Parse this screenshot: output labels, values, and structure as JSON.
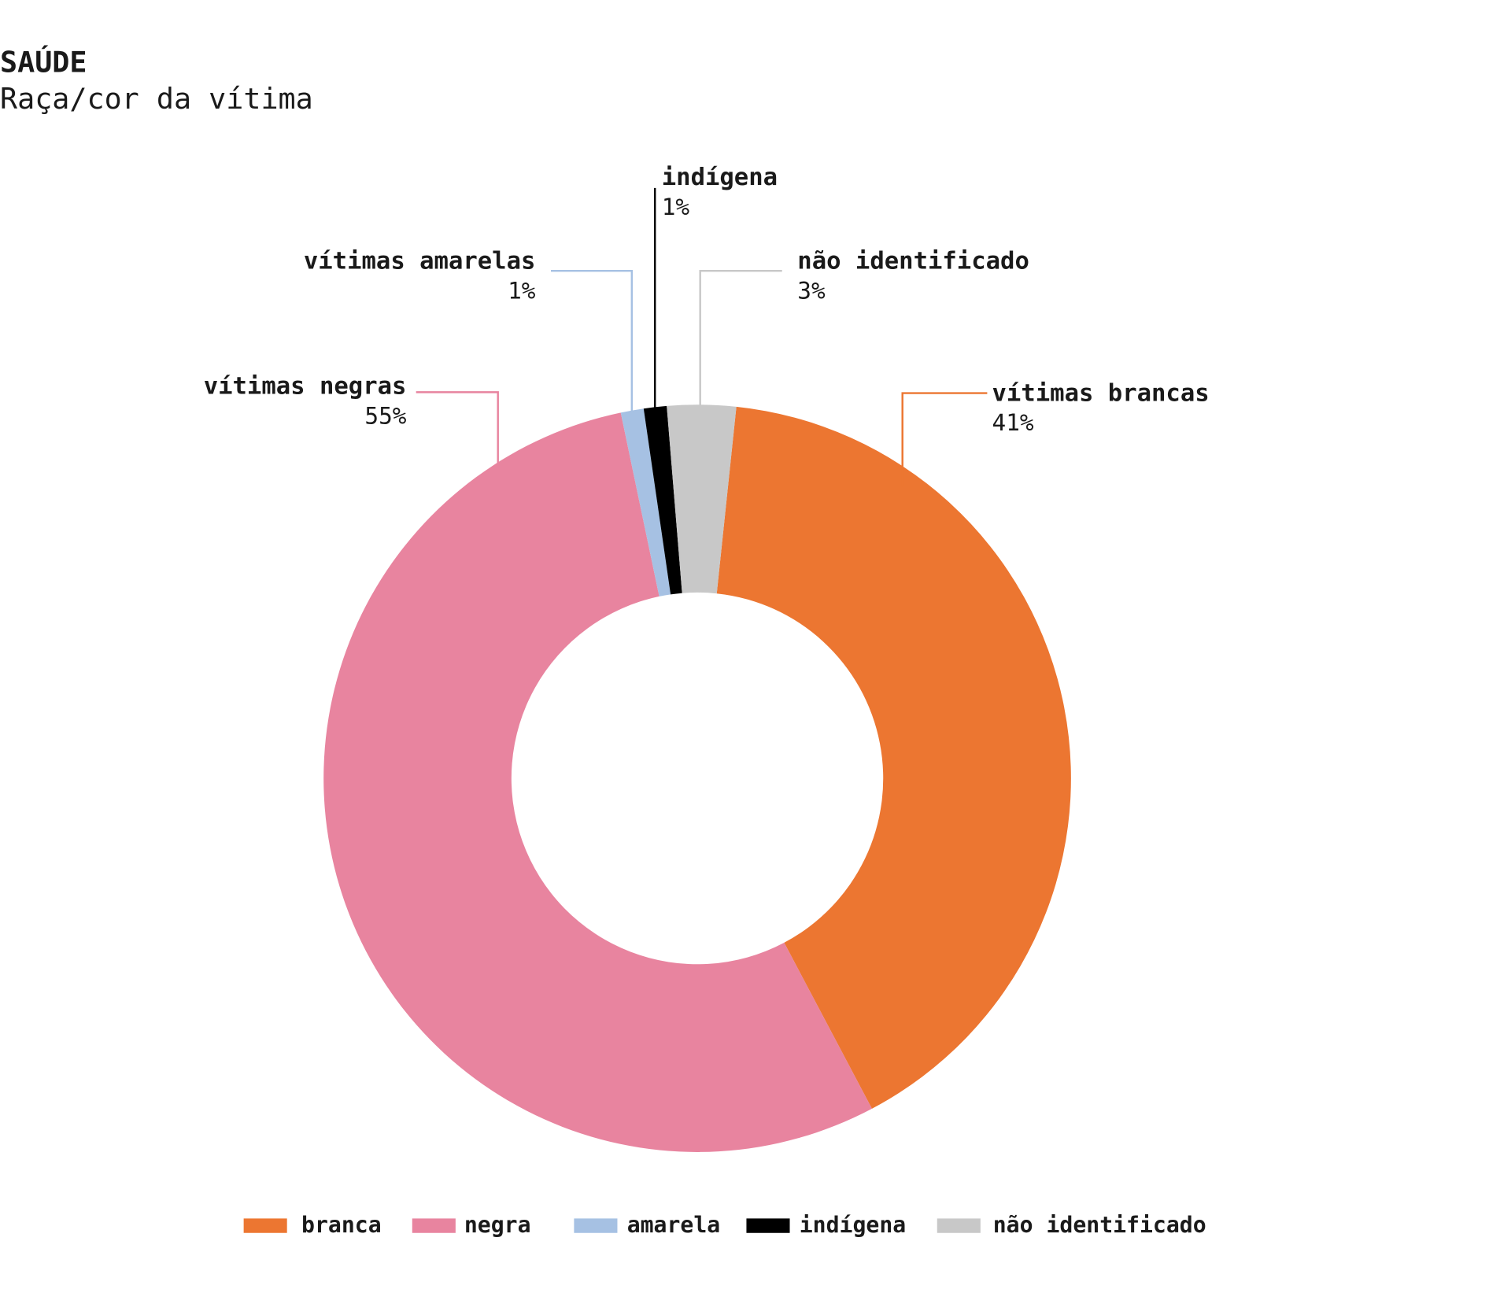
{
  "chart_data": {
    "type": "donut",
    "title": "SAÚDE",
    "subtitle": "Raça/cor da vítima",
    "categories": [
      "branca",
      "negra",
      "amarela",
      "indígena",
      "não identificado"
    ],
    "callout_labels": [
      "vítimas brancas",
      "vítimas negras",
      "vítimas amarelas",
      "indígena",
      "não identificado"
    ],
    "values": [
      41,
      55,
      1,
      1,
      3
    ],
    "value_labels": [
      "41%",
      "55%",
      "1%",
      "1%",
      "3%"
    ],
    "colors": [
      "#ec7631",
      "#e8849f",
      "#a6c1e3",
      "#000000",
      "#c8c8c8"
    ],
    "legend": "bottom"
  }
}
